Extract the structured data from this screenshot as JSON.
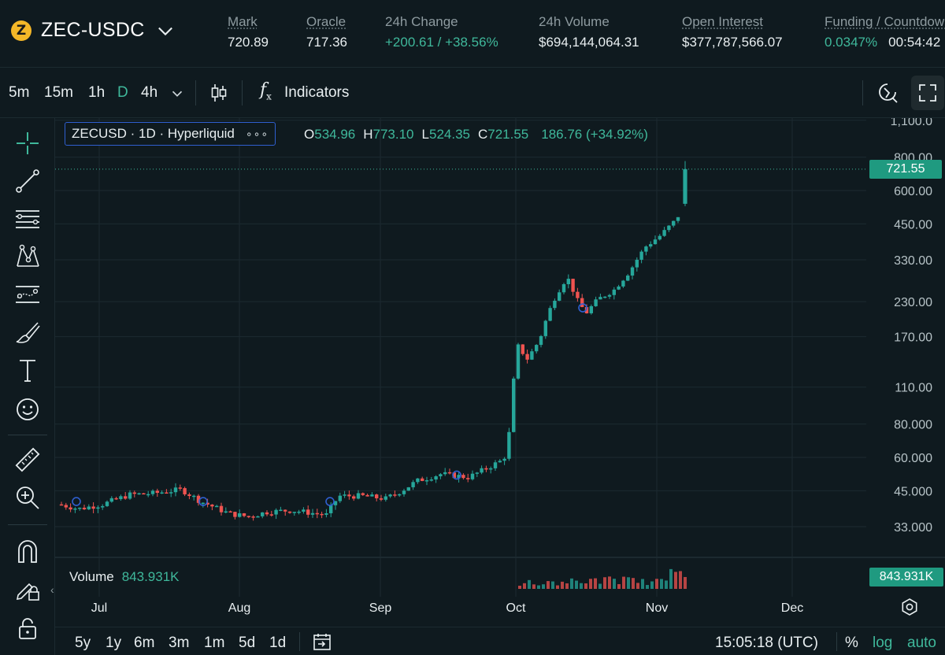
{
  "market": {
    "pair": "ZEC-USDC",
    "coin_glyph": "Z",
    "coin_color": "#f4b728",
    "stats": [
      {
        "label": "Mark",
        "value": "720.89"
      },
      {
        "label": "Oracle",
        "value": "717.36"
      },
      {
        "label": "24h Change",
        "value": "+200.61 / +38.56%"
      },
      {
        "label": "24h Volume",
        "value": "$694,144,064.31"
      },
      {
        "label": "Open Interest",
        "value": "$377,787,566.07"
      },
      {
        "label": "Funding / Countdown",
        "value": "0.0347%",
        "value2": "00:54:42"
      }
    ]
  },
  "toolbar": {
    "timeframes": [
      "5m",
      "15m",
      "1h",
      "D",
      "4h"
    ],
    "active_timeframe": "D",
    "indicators_label": "Indicators",
    "icons": [
      "chevron-down-icon",
      "candlestick-icon",
      "fx-icon",
      "replay-icon",
      "fullscreen-icon"
    ]
  },
  "left_tools": [
    "crosshair-icon",
    "trend-line-icon",
    "horizontal-lines-icon",
    "pattern-icon",
    "forecast-icon",
    "brush-icon",
    "text-icon",
    "emoji-icon",
    "ruler-icon",
    "zoom-icon",
    "magnet-icon",
    "lock-drawing-icon",
    "lock-icon"
  ],
  "legend": {
    "symbol": "ZECUSD · 1D · Hyperliquid",
    "dots": "∘∘∘",
    "open_label": "O",
    "open": "534.96",
    "high_label": "H",
    "high": "773.10",
    "low_label": "L",
    "low": "524.35",
    "close_label": "C",
    "close": "721.55",
    "change": "186.76 (+34.92%)"
  },
  "volume": {
    "label": "Volume",
    "value": "843.931K"
  },
  "price_axis": {
    "ticks": [
      "1,100.0",
      "800.00",
      "600.00",
      "450.00",
      "330.00",
      "230.00",
      "170.00",
      "110.00",
      "80.000",
      "60.000",
      "45.000",
      "33.000"
    ],
    "last_price": "721.55",
    "volume_tag": "843.931K"
  },
  "time_axis": {
    "labels": [
      "Jul",
      "Aug",
      "Sep",
      "Oct",
      "Nov",
      "Dec"
    ]
  },
  "bottom": {
    "ranges": [
      "5y",
      "1y",
      "6m",
      "3m",
      "1m",
      "5d",
      "1d"
    ],
    "clock": "15:05:18 (UTC)",
    "percent": "%",
    "log": "log",
    "auto": "auto"
  },
  "colors": {
    "up": "#26a69a",
    "down": "#ef5350",
    "accent": "#3fb89b",
    "background": "#0f1a1f",
    "grid": "#1c2a30"
  },
  "chart_data": {
    "type": "candlestick",
    "title": "ZECUSD · 1D · Hyperliquid",
    "scale": "log",
    "ylim": [
      28,
      1150
    ],
    "x_labels": [
      "Jul",
      "Aug",
      "Sep",
      "Oct",
      "Nov",
      "Dec"
    ],
    "series": [
      {
        "name": "ZECUSD",
        "ohlc_sample": [
          {
            "t": "Jun-25",
            "o": 39,
            "h": 43,
            "l": 37,
            "c": 42
          },
          {
            "t": "Jul-01",
            "o": 40,
            "h": 41,
            "l": 38,
            "c": 39
          },
          {
            "t": "Jul-15",
            "o": 43,
            "h": 48,
            "l": 42,
            "c": 46
          },
          {
            "t": "Aug-01",
            "o": 41,
            "h": 43,
            "l": 39,
            "c": 40
          },
          {
            "t": "Aug-05",
            "o": 37,
            "h": 38,
            "l": 35,
            "c": 36
          },
          {
            "t": "Aug-15",
            "o": 38,
            "h": 40,
            "l": 36,
            "c": 37
          },
          {
            "t": "Aug-20",
            "o": 35,
            "h": 38,
            "l": 34,
            "c": 37
          },
          {
            "t": "Aug-25",
            "o": 44,
            "h": 46,
            "l": 42,
            "c": 43
          },
          {
            "t": "Sep-01",
            "o": 42,
            "h": 43,
            "l": 40,
            "c": 41
          },
          {
            "t": "Sep-15",
            "o": 50,
            "h": 52,
            "l": 48,
            "c": 51
          },
          {
            "t": "Sep-25",
            "o": 56,
            "h": 60,
            "l": 55,
            "c": 58
          },
          {
            "t": "Oct-01",
            "o": 74,
            "h": 80,
            "l": 72,
            "c": 78
          },
          {
            "t": "Oct-02",
            "o": 90,
            "h": 115,
            "l": 88,
            "c": 113
          },
          {
            "t": "Oct-05",
            "o": 150,
            "h": 170,
            "l": 125,
            "c": 135
          },
          {
            "t": "Oct-10",
            "o": 200,
            "h": 280,
            "l": 190,
            "c": 270
          },
          {
            "t": "Oct-15",
            "o": 230,
            "h": 240,
            "l": 205,
            "c": 215
          },
          {
            "t": "Oct-25",
            "o": 290,
            "h": 330,
            "l": 280,
            "c": 320
          },
          {
            "t": "Nov-01",
            "o": 390,
            "h": 440,
            "l": 370,
            "c": 420
          },
          {
            "t": "Nov-05",
            "o": 450,
            "h": 520,
            "l": 430,
            "c": 510
          },
          {
            "t": "Nov-07",
            "o": 534.96,
            "h": 773.1,
            "l": 524.35,
            "c": 721.55
          }
        ]
      }
    ],
    "volume_last": "843.931K"
  }
}
